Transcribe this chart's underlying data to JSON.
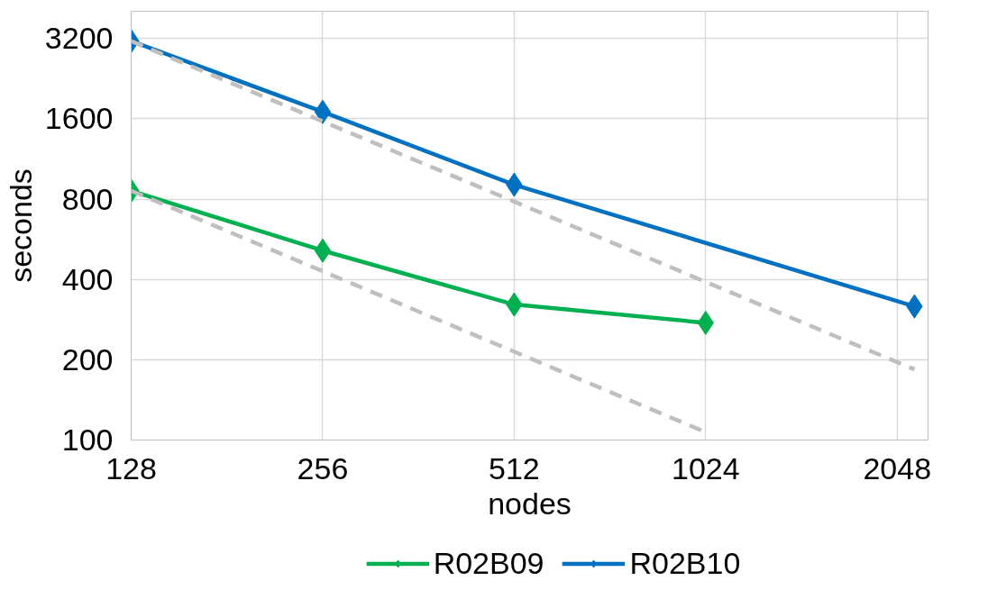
{
  "chart_data": {
    "type": "line",
    "xlabel": "nodes",
    "ylabel": "seconds",
    "log": "xy",
    "xlim": [
      128,
      2290
    ],
    "xticks": [
      128,
      256,
      512,
      1024,
      2048
    ],
    "ylim": [
      100,
      4050
    ],
    "yticks": [
      100,
      200,
      400,
      800,
      1600,
      3200
    ],
    "grid": true,
    "legend": "bottom",
    "marker": "diamond",
    "line_style": "solid",
    "series": [
      {
        "name": "R02B09",
        "color": "#00b050",
        "x": [
          128,
          256,
          512,
          1024
        ],
        "values": [
          860,
          513,
          322,
          275
        ]
      },
      {
        "name": "R02B10",
        "color": "#0070c0",
        "x": [
          128,
          256,
          512,
          2180
        ],
        "values": [
          3130,
          1700,
          906,
          317
        ]
      },
      {
        "color": "#bfbfbf",
        "x": [
          128,
          1024
        ],
        "values": [
          860,
          107
        ],
        "marker": "none",
        "line_style": "dashed"
      },
      {
        "color": "#bfbfbf",
        "x": [
          128,
          2180
        ],
        "values": [
          3130,
          184
        ],
        "marker": "none",
        "line_style": "dashed"
      }
    ]
  }
}
